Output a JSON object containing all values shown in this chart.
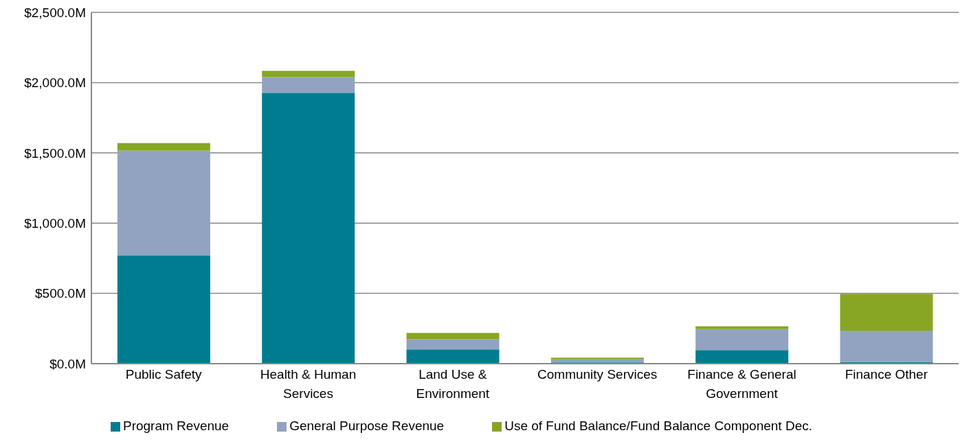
{
  "chart_data": {
    "type": "bar",
    "stacked": true,
    "categories": [
      "Public Safety",
      "Health & Human Services",
      "Land Use & Environment",
      "Community Services",
      "Finance & General Government",
      "Finance Other"
    ],
    "series": [
      {
        "name": "Program Revenue",
        "color": "#007c91",
        "values": [
          770,
          1927,
          101,
          8,
          96,
          11
        ]
      },
      {
        "name": "General Purpose Revenue",
        "color": "#91a3c0",
        "values": [
          746,
          111,
          72,
          22,
          149,
          223
        ]
      },
      {
        "name": "Use of Fund Balance/Fund Balance Component Dec.",
        "color": "#88a623",
        "values": [
          54,
          46,
          45,
          13,
          21,
          263
        ]
      }
    ],
    "ylim": [
      0,
      2500
    ],
    "yticks": [
      {
        "value": 0,
        "label": "$0.0M"
      },
      {
        "value": 500,
        "label": "$500.0M"
      },
      {
        "value": 1000,
        "label": "$1,000.0M"
      },
      {
        "value": 1500,
        "label": "$1,500.0M"
      },
      {
        "value": 2000,
        "label": "$2,000.0M"
      },
      {
        "value": 2500,
        "label": "$2,500.0M"
      }
    ],
    "grid": "y",
    "legend": "bottom"
  }
}
